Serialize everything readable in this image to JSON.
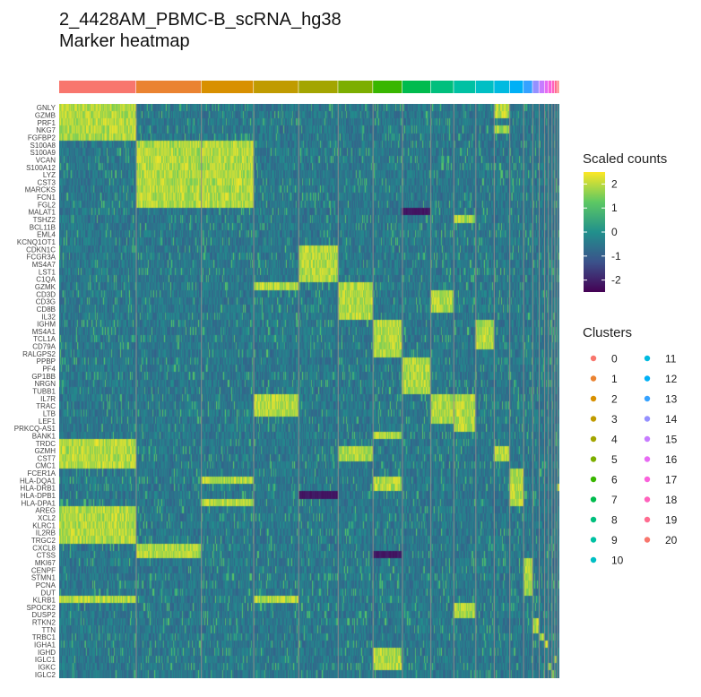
{
  "title": "2_4428AM_PBMC-B_scRNA_hg38",
  "subtitle": "Marker heatmap",
  "chart_data": {
    "type": "heatmap",
    "genes": [
      "GNLY",
      "GZMB",
      "PRF1",
      "NKG7",
      "FGFBP2",
      "S100A8",
      "S100A9",
      "VCAN",
      "S100A12",
      "LYZ",
      "CST3",
      "MARCKS",
      "FCN1",
      "FGL2",
      "MALAT1",
      "TSHZ2",
      "BCL11B",
      "EML4",
      "KCNQ1OT1",
      "CDKN1C",
      "FCGR3A",
      "MS4A7",
      "LST1",
      "C1QA",
      "GZMK",
      "CD3D",
      "CD3G",
      "CD8B",
      "IL32",
      "IGHM",
      "MS4A1",
      "TCL1A",
      "CD79A",
      "RALGPS2",
      "PPBP",
      "PF4",
      "GP1BB",
      "NRGN",
      "TUBB1",
      "IL7R",
      "TRAC",
      "LTB",
      "LEF1",
      "PRKCQ-AS1",
      "BANK1",
      "TRDC",
      "GZMH",
      "CST7",
      "CMC1",
      "FCER1A",
      "HLA-DQA1",
      "HLA-DRB1",
      "HLA-DPB1",
      "HLA-DPA1",
      "AREG",
      "XCL2",
      "KLRC1",
      "IL2RB",
      "TRGC2",
      "CXCL8",
      "CTSS",
      "MKI67",
      "CENPF",
      "STMN1",
      "PCNA",
      "DUT",
      "KLRB1",
      "SPOCK2",
      "DUSP2",
      "RTKN2",
      "TTN",
      "TRBC1",
      "IGHA1",
      "IGHD",
      "IGLC1",
      "IGKC",
      "IGLC2"
    ],
    "clusters": [
      {
        "id": "0",
        "color": "#F8766D",
        "width": 84
      },
      {
        "id": "1",
        "color": "#EA8331",
        "width": 71
      },
      {
        "id": "2",
        "color": "#D89000",
        "width": 57
      },
      {
        "id": "3",
        "color": "#C09B00",
        "width": 49
      },
      {
        "id": "4",
        "color": "#A3A500",
        "width": 43
      },
      {
        "id": "5",
        "color": "#7CAE00",
        "width": 38
      },
      {
        "id": "6",
        "color": "#39B600",
        "width": 32
      },
      {
        "id": "7",
        "color": "#00BB4E",
        "width": 31
      },
      {
        "id": "8",
        "color": "#00BF7D",
        "width": 25
      },
      {
        "id": "9",
        "color": "#00C1A3",
        "width": 24
      },
      {
        "id": "10",
        "color": "#00BFC4",
        "width": 20
      },
      {
        "id": "11",
        "color": "#00BAE0",
        "width": 17
      },
      {
        "id": "12",
        "color": "#00B0F6",
        "width": 15
      },
      {
        "id": "13",
        "color": "#35A2FF",
        "width": 10
      },
      {
        "id": "14",
        "color": "#9590FF",
        "width": 7
      },
      {
        "id": "15",
        "color": "#C77CFF",
        "width": 6
      },
      {
        "id": "16",
        "color": "#E76BF3",
        "width": 4
      },
      {
        "id": "17",
        "color": "#FA62DB",
        "width": 4
      },
      {
        "id": "18",
        "color": "#FF62BC",
        "width": 3
      },
      {
        "id": "19",
        "color": "#FF6C90",
        "width": 3
      },
      {
        "id": "20",
        "color": "#F8766D",
        "width": 2
      }
    ],
    "high_expression": {
      "0": [
        "GNLY",
        "GZMB",
        "PRF1",
        "NKG7",
        "FGFBP2",
        "TRDC",
        "GZMH",
        "CST7",
        "CMC1",
        "AREG",
        "XCL2",
        "KLRC1",
        "IL2RB",
        "TRGC2",
        "KLRB1"
      ],
      "1": [
        "S100A8",
        "S100A9",
        "VCAN",
        "S100A12",
        "LYZ",
        "CST3",
        "MARCKS",
        "FCN1",
        "FGL2",
        "CXCL8",
        "CTSS"
      ],
      "2": [
        "S100A8",
        "S100A9",
        "VCAN",
        "S100A12",
        "LYZ",
        "CST3",
        "MARCKS",
        "FCN1",
        "FGL2",
        "HLA-DQA1",
        "HLA-DPA1"
      ],
      "3": [
        "IL7R",
        "TRAC",
        "LTB",
        "KLRB1",
        "GZMK"
      ],
      "4": [
        "CDKN1C",
        "FCGR3A",
        "MS4A7",
        "LST1",
        "C1QA"
      ],
      "5": [
        "GZMK",
        "CD3D",
        "CD3G",
        "CD8B",
        "IL32",
        "GZMH",
        "CST7"
      ],
      "6": [
        "IGHM",
        "MS4A1",
        "TCL1A",
        "CD79A",
        "RALGPS2",
        "BANK1",
        "HLA-DQA1",
        "HLA-DRB1",
        "IGHD",
        "IGLC1",
        "IGKC"
      ],
      "7": [
        "PPBP",
        "PF4",
        "GP1BB",
        "NRGN",
        "TUBB1"
      ],
      "8": [
        "CD3D",
        "CD3G",
        "CD8B",
        "IL7R",
        "TRAC",
        "LTB",
        "LEF1"
      ],
      "9": [
        "TSHZ2",
        "IL7R",
        "TRAC",
        "LTB",
        "LEF1",
        "PRKCQ-AS1",
        "SPOCK2",
        "DUSP2"
      ],
      "10": [
        "IGHM",
        "MS4A1",
        "CD79A",
        "TCL1A"
      ],
      "11": [
        "GNLY",
        "GZMB",
        "NKG7",
        "GZMH",
        "CST7"
      ],
      "12": [
        "FCER1A",
        "HLA-DQA1",
        "HLA-DRB1",
        "HLA-DPB1",
        "HLA-DPA1"
      ],
      "13": [
        "MKI67",
        "CENPF",
        "STMN1",
        "PCNA",
        "DUT"
      ],
      "14": [
        "RTKN2",
        "TTN"
      ],
      "15": [
        "TRBC1"
      ],
      "16": [
        "IGHA1"
      ],
      "17": [
        "IGKC"
      ],
      "18": [
        "IGLC2"
      ],
      "19": [
        "IGLC1"
      ],
      "20": [
        "HLA-DRB1"
      ]
    },
    "low_expression": {
      "7": [
        "MALAT1"
      ],
      "4": [
        "HLA-DPB1"
      ],
      "6": [
        "CTSS"
      ]
    },
    "color_scale": {
      "title": "Scaled counts",
      "ticks": [
        "2",
        "1",
        "0",
        "-1",
        "-2"
      ],
      "min": -2.5,
      "max": 2.5,
      "colors": [
        "#440154",
        "#3B528B",
        "#21908C",
        "#5DC863",
        "#FDE725"
      ]
    },
    "legend_title": "Clusters"
  }
}
